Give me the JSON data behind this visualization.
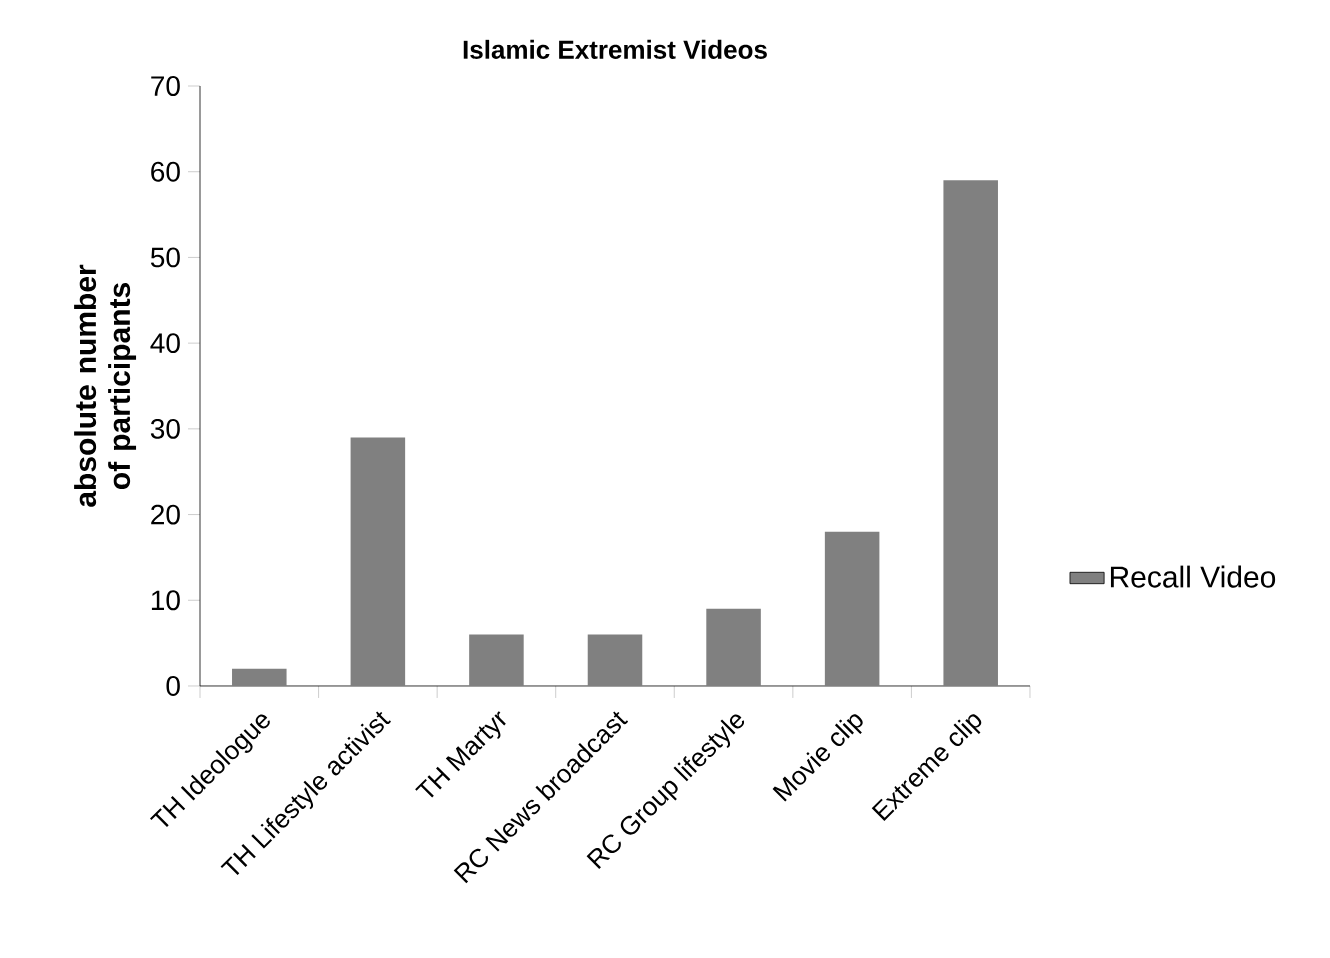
{
  "chart_data": {
    "type": "bar",
    "title": "Islamic Extremist Videos",
    "ylabel": "absolute number of participants",
    "categories": [
      "TH Ideologue",
      "TH Lifestyle activist",
      "TH Martyr",
      "RC News broadcast",
      "RC Group lifestyle",
      "Movie clip",
      "Extreme clip"
    ],
    "series": [
      {
        "name": "Recall Video",
        "color": "#808080",
        "values": [
          2,
          29,
          6,
          6,
          9,
          18,
          59
        ]
      }
    ],
    "ylim": [
      0,
      70
    ],
    "yticks": [
      0,
      10,
      20,
      30,
      40,
      50,
      60,
      70
    ],
    "legend": "right",
    "grid": false
  }
}
